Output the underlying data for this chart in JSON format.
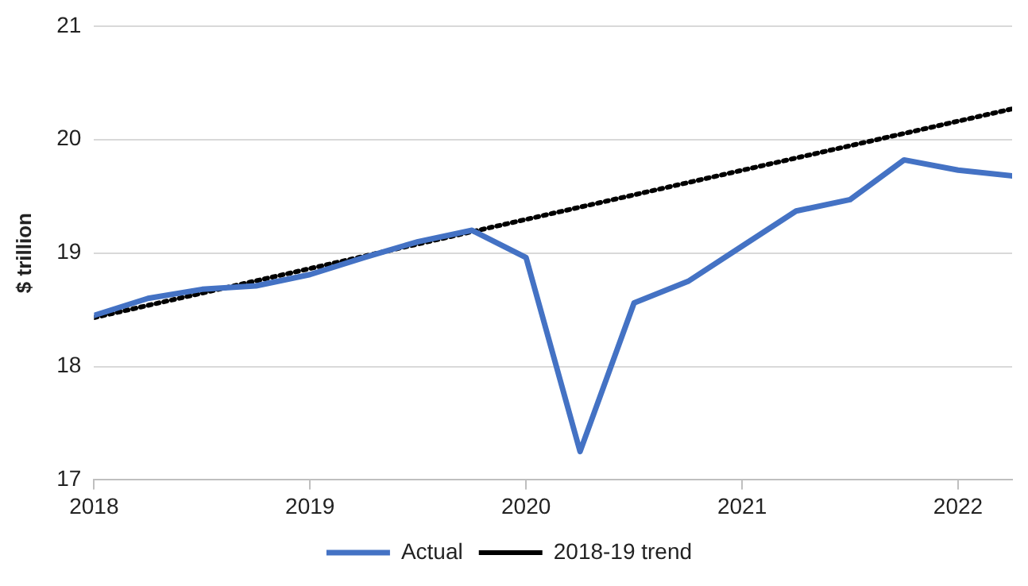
{
  "chart_data": {
    "type": "line",
    "ylabel": "$ trillion",
    "x": [
      2018,
      2018.25,
      2018.5,
      2018.75,
      2019,
      2019.25,
      2019.5,
      2019.75,
      2020,
      2020.25,
      2020.5,
      2020.75,
      2021,
      2021.25,
      2021.5,
      2021.75,
      2022,
      2022.25
    ],
    "series": [
      {
        "name": "Actual",
        "color": "#4472c4",
        "line_style": "solid",
        "values": [
          18.45,
          18.6,
          18.68,
          18.71,
          18.81,
          18.96,
          19.1,
          19.2,
          18.96,
          17.25,
          18.56,
          18.75,
          19.06,
          19.37,
          19.47,
          19.82,
          19.73,
          19.68
        ]
      },
      {
        "name": "2018-19 trend",
        "color": "#000000",
        "line_style": "dotted",
        "x": [
          2018,
          2022.25
        ],
        "values": [
          18.43,
          20.27
        ]
      }
    ],
    "xlim": [
      2018,
      2022.25
    ],
    "xticks": [
      2018,
      2019,
      2020,
      2021,
      2022
    ],
    "ylim": [
      17,
      21
    ],
    "yticks": [
      17,
      18,
      19,
      20,
      21
    ],
    "grid": "y",
    "legend": "bottom",
    "marker": "none"
  }
}
